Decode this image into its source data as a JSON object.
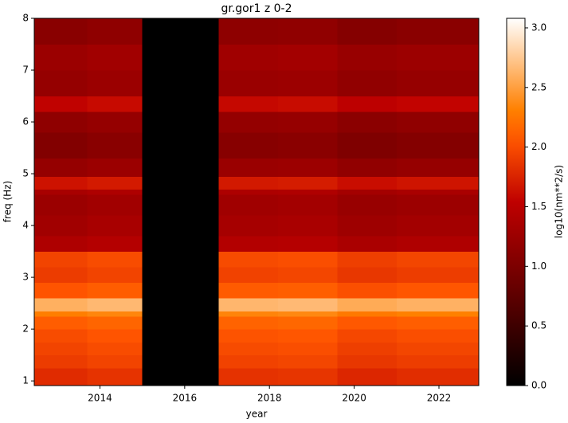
{
  "chart_data": {
    "type": "heatmap",
    "title": "gr.gor1 z 0-2",
    "x_label": "year",
    "y_label": "freq (Hz)",
    "colorbar_label": "log10(nm**2/s)",
    "colormap": "gist_heat",
    "x_edges": [
      2012.45,
      2013.7,
      2015.0,
      2016.8,
      2018.2,
      2019.6,
      2021.0,
      2022.94
    ],
    "y_edges": [
      0.91,
      1.25,
      1.5,
      1.75,
      2.0,
      2.25,
      2.35,
      2.6,
      2.9,
      3.2,
      3.5,
      3.8,
      4.2,
      4.6,
      4.7,
      4.95,
      5.3,
      5.8,
      6.2,
      6.5,
      7.0,
      7.5,
      8.0
    ],
    "z": [
      [
        1.8,
        1.85,
        0,
        1.84,
        1.86,
        1.77,
        1.81
      ],
      [
        1.9,
        1.95,
        0,
        1.94,
        1.96,
        1.87,
        1.91
      ],
      [
        1.95,
        2.0,
        0,
        1.99,
        2.01,
        1.92,
        1.96
      ],
      [
        2.0,
        2.05,
        0,
        2.04,
        2.06,
        1.97,
        2.01
      ],
      [
        2.1,
        2.15,
        0,
        2.14,
        2.16,
        2.07,
        2.11
      ],
      [
        2.3,
        2.35,
        0,
        2.34,
        2.36,
        2.27,
        2.31
      ],
      [
        2.6,
        2.65,
        0,
        2.64,
        2.66,
        2.57,
        2.61
      ],
      [
        2.05,
        2.1,
        0,
        2.09,
        2.11,
        2.02,
        2.06
      ],
      [
        1.9,
        1.95,
        0,
        1.94,
        1.96,
        1.87,
        1.91
      ],
      [
        1.95,
        2.0,
        0,
        1.99,
        2.01,
        1.92,
        1.96
      ],
      [
        1.4,
        1.45,
        0,
        1.44,
        1.46,
        1.37,
        1.41
      ],
      [
        1.3,
        1.35,
        0,
        1.34,
        1.36,
        1.27,
        1.31
      ],
      [
        1.25,
        1.3,
        0,
        1.29,
        1.31,
        1.22,
        1.26
      ],
      [
        1.35,
        1.4,
        0,
        1.39,
        1.41,
        1.32,
        1.36
      ],
      [
        1.65,
        1.7,
        0,
        1.69,
        1.71,
        1.62,
        1.66
      ],
      [
        1.2,
        1.25,
        0,
        1.24,
        1.26,
        1.17,
        1.21
      ],
      [
        1.05,
        1.1,
        0,
        1.09,
        1.11,
        1.02,
        1.06
      ],
      [
        1.15,
        1.2,
        0,
        1.19,
        1.21,
        1.12,
        1.16
      ],
      [
        1.55,
        1.6,
        0,
        1.59,
        1.61,
        1.52,
        1.56
      ],
      [
        1.2,
        1.25,
        0,
        1.24,
        1.26,
        1.17,
        1.21
      ],
      [
        1.25,
        1.3,
        0,
        1.29,
        1.31,
        1.22,
        1.26
      ],
      [
        1.1,
        1.15,
        0,
        1.14,
        1.16,
        1.07,
        1.11
      ]
    ],
    "xlim": [
      2012.45,
      2022.94
    ],
    "xticks": [
      2014,
      2016,
      2018,
      2020,
      2022
    ],
    "ylim": [
      0.91,
      8
    ],
    "yticks": [
      1,
      2,
      3,
      4,
      5,
      6,
      7,
      8
    ],
    "clim": [
      0,
      3.08
    ],
    "cticks": [
      {
        "value": 0,
        "label": "0.0"
      },
      0.5,
      {
        "value": 1,
        "label": "1.0"
      },
      1.5,
      {
        "value": 2,
        "label": "2.0"
      },
      2.5,
      {
        "value": 3,
        "label": "3.0"
      }
    ]
  }
}
